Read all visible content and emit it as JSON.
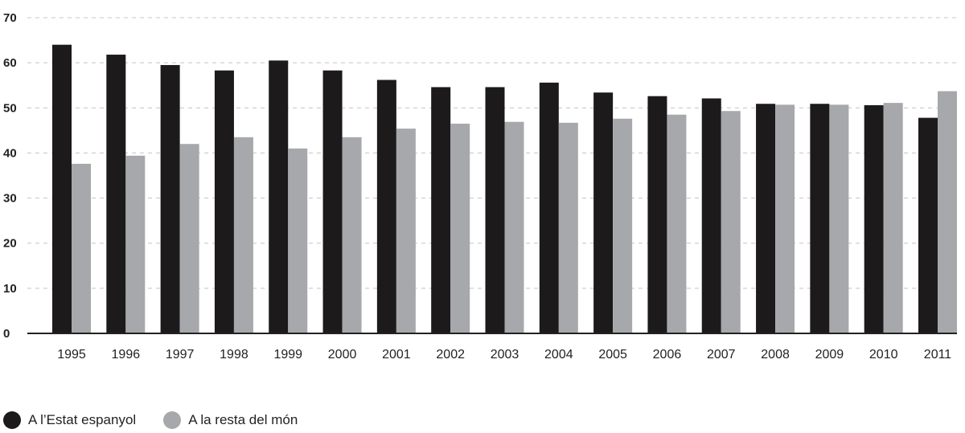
{
  "chart_data": {
    "type": "bar",
    "categories": [
      "1995",
      "1996",
      "1997",
      "1998",
      "1999",
      "2000",
      "2001",
      "2002",
      "2003",
      "2004",
      "2005",
      "2006",
      "2007",
      "2008",
      "2009",
      "2010",
      "2011"
    ],
    "series": [
      {
        "name": "A l’Estat espanyol",
        "color": "#1c1a1b",
        "values": [
          64,
          61.8,
          59.5,
          58.3,
          60.5,
          58.3,
          56.2,
          54.6,
          54.6,
          55.6,
          53.4,
          52.6,
          52.1,
          50.9,
          50.9,
          50.6,
          47.8
        ]
      },
      {
        "name": "A la resta del món",
        "color": "#a7a8ab",
        "values": [
          37.6,
          39.4,
          42,
          43.5,
          41,
          43.5,
          45.4,
          46.5,
          46.9,
          46.7,
          47.6,
          48.5,
          49.3,
          50.7,
          50.7,
          51.1,
          53.7
        ]
      }
    ],
    "yticks": [
      "0",
      "10",
      "20",
      "30",
      "40",
      "50",
      "60",
      "70"
    ],
    "ylim": [
      0,
      70
    ],
    "grid": true,
    "legend_position": "bottom-left"
  }
}
